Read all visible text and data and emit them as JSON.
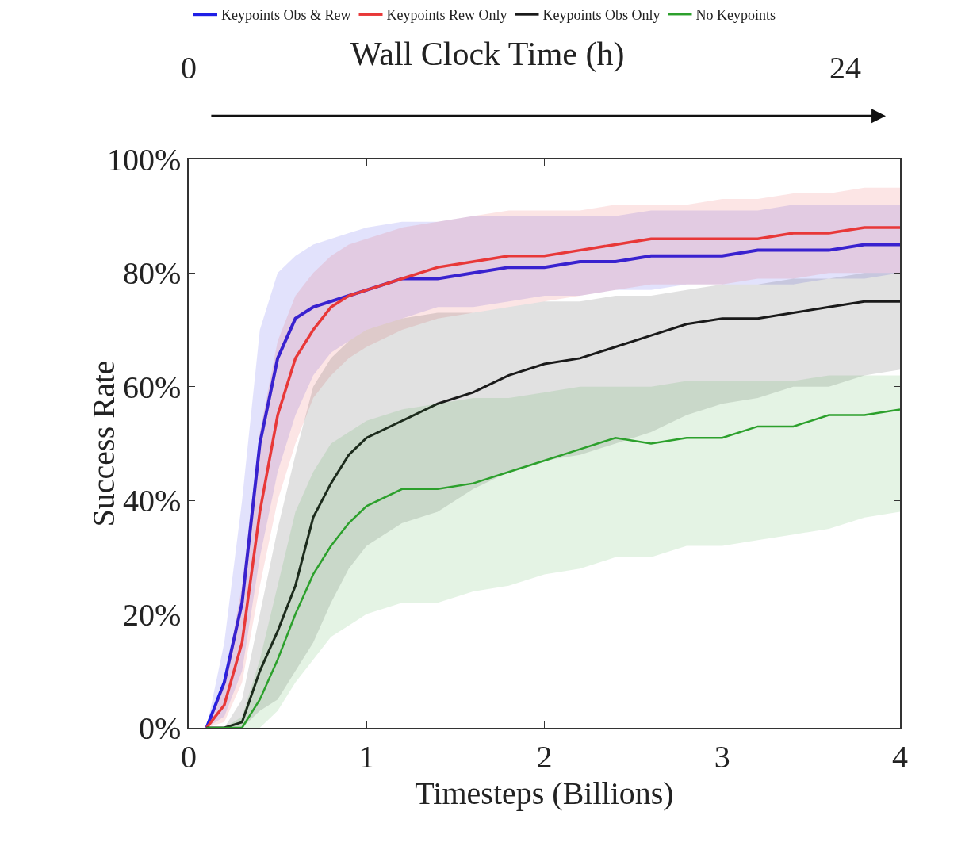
{
  "chart_data": {
    "type": "line",
    "xlabel": "Timesteps (Billions)",
    "ylabel": "Success Rate",
    "x2label": "Wall Clock Time (h)",
    "x": [
      0.1,
      0.2,
      0.3,
      0.4,
      0.5,
      0.6,
      0.7,
      0.8,
      0.9,
      1.0,
      1.2,
      1.4,
      1.6,
      1.8,
      2.0,
      2.2,
      2.4,
      2.6,
      2.8,
      3.0,
      3.2,
      3.4,
      3.6,
      3.8,
      4.0
    ],
    "xlim": [
      0,
      4
    ],
    "xticks": [
      0,
      1,
      2,
      3,
      4
    ],
    "x2lim": [
      0,
      26
    ],
    "x2ticks": [
      0,
      24
    ],
    "ylim": [
      0,
      100
    ],
    "yticks": [
      {
        "value": 0,
        "label": "0%"
      },
      {
        "value": 20,
        "label": "20%"
      },
      {
        "value": 40,
        "label": "40%"
      },
      {
        "value": 60,
        "label": "60%"
      },
      {
        "value": 80,
        "label": "80%"
      },
      {
        "value": 100,
        "label": "100%"
      }
    ],
    "grid": false,
    "legend": "top",
    "marker": "none",
    "line_style": "solid",
    "series": [
      {
        "name": "Keypoints Obs & Rew",
        "color": "#1f1fe6",
        "values": [
          0,
          8,
          22,
          50,
          65,
          72,
          74,
          75,
          76,
          77,
          79,
          79,
          80,
          81,
          81,
          82,
          82,
          83,
          83,
          83,
          84,
          84,
          84,
          85,
          85
        ],
        "lower": [
          0,
          2,
          10,
          30,
          45,
          55,
          62,
          66,
          68,
          70,
          72,
          74,
          74,
          75,
          76,
          76,
          77,
          77,
          78,
          78,
          78,
          78,
          79,
          79,
          80
        ],
        "upper": [
          0,
          15,
          40,
          70,
          80,
          83,
          85,
          86,
          87,
          88,
          89,
          89,
          90,
          90,
          90,
          90,
          90,
          91,
          91,
          91,
          91,
          92,
          92,
          92,
          92
        ]
      },
      {
        "name": "Keypoints Rew Only",
        "color": "#e83838",
        "values": [
          0,
          4,
          15,
          38,
          55,
          65,
          70,
          74,
          76,
          77,
          79,
          81,
          82,
          83,
          83,
          84,
          85,
          86,
          86,
          86,
          86,
          87,
          87,
          88,
          88
        ],
        "lower": [
          0,
          1,
          8,
          25,
          40,
          50,
          58,
          62,
          65,
          67,
          70,
          72,
          73,
          74,
          75,
          76,
          77,
          78,
          78,
          78,
          79,
          79,
          80,
          80,
          80
        ],
        "upper": [
          0,
          8,
          25,
          52,
          68,
          76,
          80,
          83,
          85,
          86,
          88,
          89,
          90,
          91,
          91,
          91,
          92,
          92,
          92,
          93,
          93,
          94,
          94,
          95,
          95
        ]
      },
      {
        "name": "Keypoints Obs Only",
        "color": "#1a1a1a",
        "values": [
          0,
          0,
          1,
          10,
          17,
          25,
          37,
          43,
          48,
          51,
          54,
          57,
          59,
          62,
          64,
          65,
          67,
          69,
          71,
          72,
          72,
          73,
          74,
          75,
          75
        ],
        "lower": [
          0,
          0,
          0,
          3,
          5,
          10,
          15,
          22,
          28,
          32,
          36,
          38,
          42,
          45,
          47,
          48,
          50,
          52,
          55,
          57,
          58,
          60,
          60,
          62,
          63
        ],
        "upper": [
          0,
          0,
          5,
          20,
          35,
          48,
          60,
          65,
          68,
          70,
          72,
          73,
          73,
          74,
          75,
          75,
          76,
          76,
          77,
          78,
          78,
          79,
          79,
          80,
          80
        ]
      },
      {
        "name": "No Keypoints",
        "color": "#2ca02c",
        "values": [
          0,
          0,
          0,
          5,
          12,
          20,
          27,
          32,
          36,
          39,
          42,
          42,
          43,
          45,
          47,
          49,
          51,
          50,
          51,
          51,
          53,
          53,
          55,
          55,
          56
        ],
        "lower": [
          0,
          0,
          0,
          0,
          3,
          8,
          12,
          16,
          18,
          20,
          22,
          22,
          24,
          25,
          27,
          28,
          30,
          30,
          32,
          32,
          33,
          34,
          35,
          37,
          38
        ],
        "upper": [
          0,
          0,
          2,
          12,
          25,
          38,
          45,
          50,
          52,
          54,
          56,
          57,
          58,
          58,
          59,
          60,
          60,
          60,
          61,
          61,
          61,
          61,
          62,
          62,
          62
        ]
      }
    ]
  }
}
